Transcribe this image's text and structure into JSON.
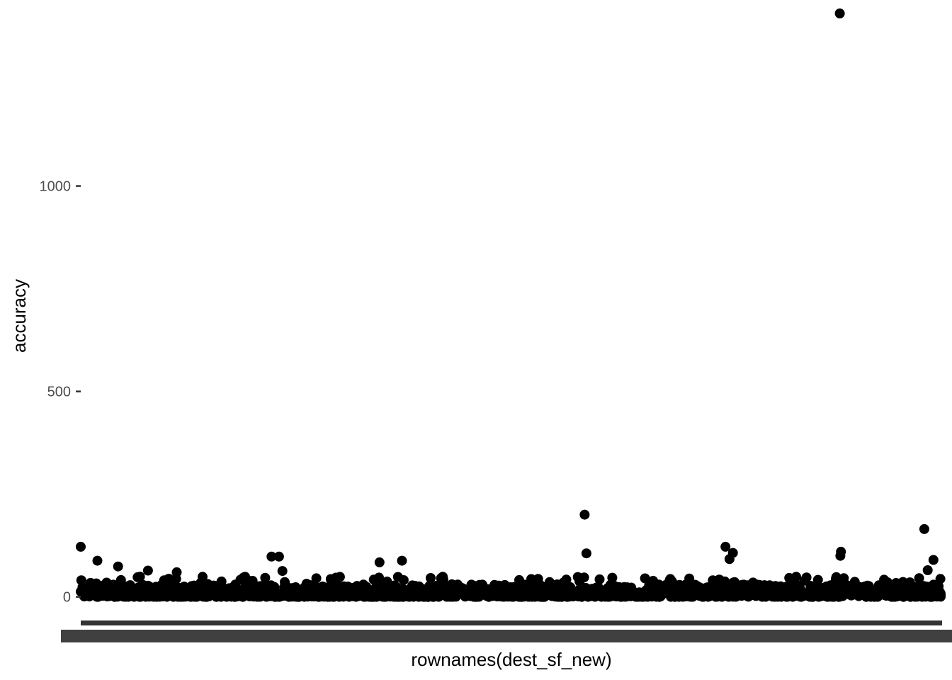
{
  "chart_data": {
    "type": "scatter",
    "title": "",
    "xlabel": "rownames(dest_sf_new)",
    "ylabel": "accuracy",
    "ylim": [
      -23,
      1432
    ],
    "yticks": [
      0,
      500,
      1000
    ],
    "ytick_labels": [
      "0",
      "500",
      "1000"
    ],
    "x_tick_labels_note": "overlapping unreadable row-name labels",
    "grid": false,
    "legend": "none",
    "point_color": "#000000",
    "n_points": 1500,
    "outliers": [
      {
        "x": 1,
        "y": 122
      },
      {
        "x": 30,
        "y": 88
      },
      {
        "x": 66,
        "y": 74
      },
      {
        "x": 118,
        "y": 64
      },
      {
        "x": 168,
        "y": 60
      },
      {
        "x": 333,
        "y": 98
      },
      {
        "x": 346,
        "y": 98
      },
      {
        "x": 352,
        "y": 63
      },
      {
        "x": 521,
        "y": 84
      },
      {
        "x": 560,
        "y": 88
      },
      {
        "x": 878,
        "y": 200
      },
      {
        "x": 881,
        "y": 106
      },
      {
        "x": 1123,
        "y": 122
      },
      {
        "x": 1136,
        "y": 107
      },
      {
        "x": 1130,
        "y": 92
      },
      {
        "x": 1322,
        "y": 1420
      },
      {
        "x": 1324,
        "y": 110
      },
      {
        "x": 1323,
        "y": 100
      },
      {
        "x": 1469,
        "y": 165
      },
      {
        "x": 1475,
        "y": 65
      },
      {
        "x": 1485,
        "y": 90
      }
    ]
  }
}
